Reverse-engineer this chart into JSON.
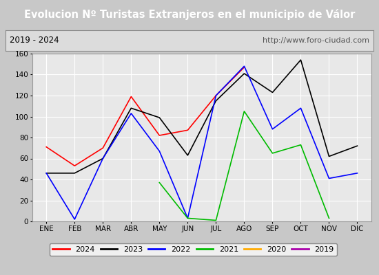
{
  "title": "Evolucion Nº Turistas Extranjeros en el municipio de Válor",
  "subtitle_left": "2019 - 2024",
  "subtitle_right": "http://www.foro-ciudad.com",
  "months": [
    "ENE",
    "FEB",
    "MAR",
    "ABR",
    "MAY",
    "JUN",
    "JUL",
    "AGO",
    "SEP",
    "OCT",
    "NOV",
    "DIC"
  ],
  "series_2024": [
    71,
    53,
    70,
    119,
    82,
    87,
    120,
    147,
    null,
    null,
    null,
    null
  ],
  "series_2023": [
    46,
    46,
    60,
    108,
    99,
    63,
    115,
    141,
    123,
    154,
    62,
    72
  ],
  "series_2022": [
    46,
    2,
    60,
    103,
    67,
    3,
    120,
    148,
    88,
    108,
    41,
    46
  ],
  "series_2021": [
    null,
    null,
    null,
    null,
    37,
    3,
    1,
    105,
    65,
    73,
    3,
    null
  ],
  "series_2020": [
    null,
    null,
    null,
    null,
    null,
    null,
    null,
    null,
    null,
    null,
    null,
    null
  ],
  "series_2019": [
    null,
    null,
    null,
    null,
    null,
    null,
    null,
    null,
    null,
    null,
    null,
    null
  ],
  "color_2024": "#ff0000",
  "color_2023": "#000000",
  "color_2022": "#0000ff",
  "color_2021": "#00bb00",
  "color_2020": "#ffaa00",
  "color_2019": "#aa00aa",
  "ylim_min": 0,
  "ylim_max": 160,
  "yticks": [
    0,
    20,
    40,
    60,
    80,
    100,
    120,
    140,
    160
  ],
  "title_bg": "#4f7fc0",
  "title_color": "#ffffff",
  "plot_bg": "#e8e8e8",
  "fig_bg": "#c8c8c8",
  "subtitle_bg": "#dcdcdc",
  "grid_color": "#ffffff",
  "title_fontsize": 10.5,
  "tick_fontsize": 7.5,
  "legend_fontsize": 8,
  "line_width": 1.2
}
